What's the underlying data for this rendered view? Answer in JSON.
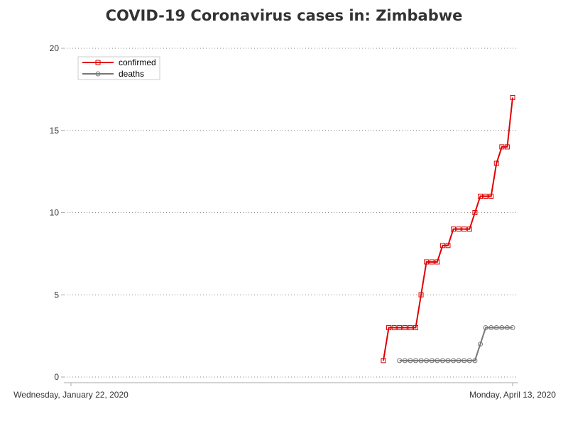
{
  "chart_data": {
    "type": "line",
    "title": "COVID-19 Coronavirus cases in: Zimbabwe",
    "xlabel": "",
    "ylabel": "",
    "x_tick_labels": [
      "Wednesday, January 22, 2020",
      "Monday, April 13, 2020"
    ],
    "x_range": [
      "2020-01-22",
      "2020-04-13"
    ],
    "y_ticks": [
      0,
      5,
      10,
      15,
      20
    ],
    "ylim": [
      0,
      20
    ],
    "grid": "horizontal dotted",
    "legend_position": "top-left",
    "series": [
      {
        "name": "confirmed",
        "color": "#e00000",
        "marker": "square",
        "x": [
          "2020-03-20",
          "2020-03-21",
          "2020-03-22",
          "2020-03-23",
          "2020-03-24",
          "2020-03-25",
          "2020-03-26",
          "2020-03-27",
          "2020-03-28",
          "2020-03-29",
          "2020-03-30",
          "2020-03-31",
          "2020-04-01",
          "2020-04-02",
          "2020-04-03",
          "2020-04-04",
          "2020-04-05",
          "2020-04-06",
          "2020-04-07",
          "2020-04-08",
          "2020-04-09",
          "2020-04-10",
          "2020-04-11",
          "2020-04-12",
          "2020-04-13"
        ],
        "values": [
          1,
          3,
          3,
          3,
          3,
          3,
          3,
          5,
          7,
          7,
          7,
          8,
          8,
          9,
          9,
          9,
          9,
          10,
          11,
          11,
          11,
          13,
          14,
          14,
          17
        ]
      },
      {
        "name": "deaths",
        "color": "#777777",
        "marker": "circle",
        "x": [
          "2020-03-23",
          "2020-03-24",
          "2020-03-25",
          "2020-03-26",
          "2020-03-27",
          "2020-03-28",
          "2020-03-29",
          "2020-03-30",
          "2020-03-31",
          "2020-04-01",
          "2020-04-02",
          "2020-04-03",
          "2020-04-04",
          "2020-04-05",
          "2020-04-06",
          "2020-04-07",
          "2020-04-08",
          "2020-04-09",
          "2020-04-10",
          "2020-04-11",
          "2020-04-12",
          "2020-04-13"
        ],
        "values": [
          1,
          1,
          1,
          1,
          1,
          1,
          1,
          1,
          1,
          1,
          1,
          1,
          1,
          1,
          1,
          2,
          3,
          3,
          3,
          3,
          3,
          3
        ]
      }
    ]
  }
}
